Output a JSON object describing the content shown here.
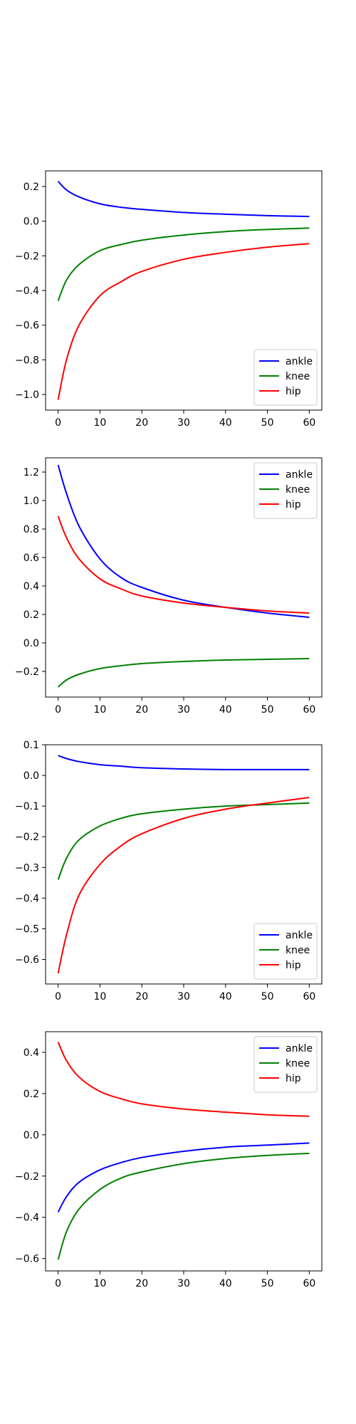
{
  "chart_data": [
    {
      "type": "line",
      "xlim": [
        -3,
        63
      ],
      "ylim": [
        -1.09,
        0.29
      ],
      "xticks": [
        0,
        10,
        20,
        30,
        40,
        50,
        60
      ],
      "yticks": [
        -1.0,
        -0.8,
        -0.6,
        -0.4,
        -0.2,
        0.0,
        0.2
      ],
      "legend_position": "lower-right",
      "grid": false,
      "x": [
        0,
        2,
        5,
        10,
        15,
        20,
        30,
        40,
        50,
        60
      ],
      "series": [
        {
          "name": "ankle",
          "color": "#0000ff",
          "values": [
            0.23,
            0.18,
            0.14,
            0.1,
            0.08,
            0.068,
            0.05,
            0.04,
            0.032,
            0.027
          ]
        },
        {
          "name": "knee",
          "color": "#008000",
          "values": [
            -0.46,
            -0.34,
            -0.25,
            -0.17,
            -0.135,
            -0.11,
            -0.08,
            -0.06,
            -0.048,
            -0.04
          ]
        },
        {
          "name": "hip",
          "color": "#ff0000",
          "values": [
            -1.03,
            -0.8,
            -0.6,
            -0.43,
            -0.35,
            -0.29,
            -0.22,
            -0.18,
            -0.15,
            -0.13
          ]
        }
      ]
    },
    {
      "type": "line",
      "xlim": [
        -3,
        63
      ],
      "ylim": [
        -0.38,
        1.3
      ],
      "xticks": [
        0,
        10,
        20,
        30,
        40,
        50,
        60
      ],
      "yticks": [
        -0.2,
        0.0,
        0.2,
        0.4,
        0.6,
        0.8,
        1.0,
        1.2
      ],
      "legend_position": "upper-right",
      "grid": false,
      "x": [
        0,
        2,
        5,
        10,
        15,
        20,
        30,
        40,
        50,
        60
      ],
      "series": [
        {
          "name": "ankle",
          "color": "#0000ff",
          "values": [
            1.25,
            1.05,
            0.82,
            0.59,
            0.46,
            0.39,
            0.3,
            0.25,
            0.21,
            0.18
          ]
        },
        {
          "name": "knee",
          "color": "#008000",
          "values": [
            -0.31,
            -0.26,
            -0.22,
            -0.18,
            -0.16,
            -0.145,
            -0.13,
            -0.12,
            -0.115,
            -0.11
          ]
        },
        {
          "name": "hip",
          "color": "#ff0000",
          "values": [
            0.89,
            0.74,
            0.59,
            0.45,
            0.38,
            0.33,
            0.28,
            0.25,
            0.225,
            0.21
          ]
        }
      ]
    },
    {
      "type": "line",
      "xlim": [
        -3,
        63
      ],
      "ylim": [
        -0.68,
        0.1
      ],
      "xticks": [
        0,
        10,
        20,
        30,
        40,
        50,
        60
      ],
      "yticks": [
        -0.6,
        -0.5,
        -0.4,
        -0.3,
        -0.2,
        -0.1,
        0.0,
        0.1
      ],
      "legend_position": "lower-right",
      "grid": false,
      "x": [
        0,
        2,
        5,
        10,
        15,
        20,
        30,
        40,
        50,
        60
      ],
      "series": [
        {
          "name": "ankle",
          "color": "#0000ff",
          "values": [
            0.065,
            0.055,
            0.045,
            0.035,
            0.03,
            0.025,
            0.021,
            0.019,
            0.019,
            0.019
          ]
        },
        {
          "name": "knee",
          "color": "#008000",
          "values": [
            -0.34,
            -0.27,
            -0.21,
            -0.165,
            -0.14,
            -0.125,
            -0.11,
            -0.1,
            -0.095,
            -0.09
          ]
        },
        {
          "name": "hip",
          "color": "#ff0000",
          "values": [
            -0.645,
            -0.52,
            -0.39,
            -0.29,
            -0.23,
            -0.19,
            -0.14,
            -0.11,
            -0.09,
            -0.072
          ]
        }
      ]
    },
    {
      "type": "line",
      "xlim": [
        -3,
        63
      ],
      "ylim": [
        -0.66,
        0.5
      ],
      "xticks": [
        0,
        10,
        20,
        30,
        40,
        50,
        60
      ],
      "yticks": [
        -0.6,
        -0.4,
        -0.2,
        0.0,
        0.2,
        0.4
      ],
      "legend_position": "upper-right",
      "grid": false,
      "x": [
        0,
        2,
        5,
        10,
        15,
        20,
        30,
        40,
        50,
        60
      ],
      "series": [
        {
          "name": "ankle",
          "color": "#0000ff",
          "values": [
            -0.375,
            -0.3,
            -0.23,
            -0.17,
            -0.135,
            -0.11,
            -0.08,
            -0.06,
            -0.05,
            -0.04
          ]
        },
        {
          "name": "knee",
          "color": "#008000",
          "values": [
            -0.605,
            -0.47,
            -0.36,
            -0.265,
            -0.21,
            -0.18,
            -0.14,
            -0.115,
            -0.1,
            -0.09
          ]
        },
        {
          "name": "hip",
          "color": "#ff0000",
          "values": [
            0.45,
            0.36,
            0.28,
            0.21,
            0.175,
            0.15,
            0.125,
            0.11,
            0.097,
            0.09
          ]
        }
      ]
    }
  ]
}
